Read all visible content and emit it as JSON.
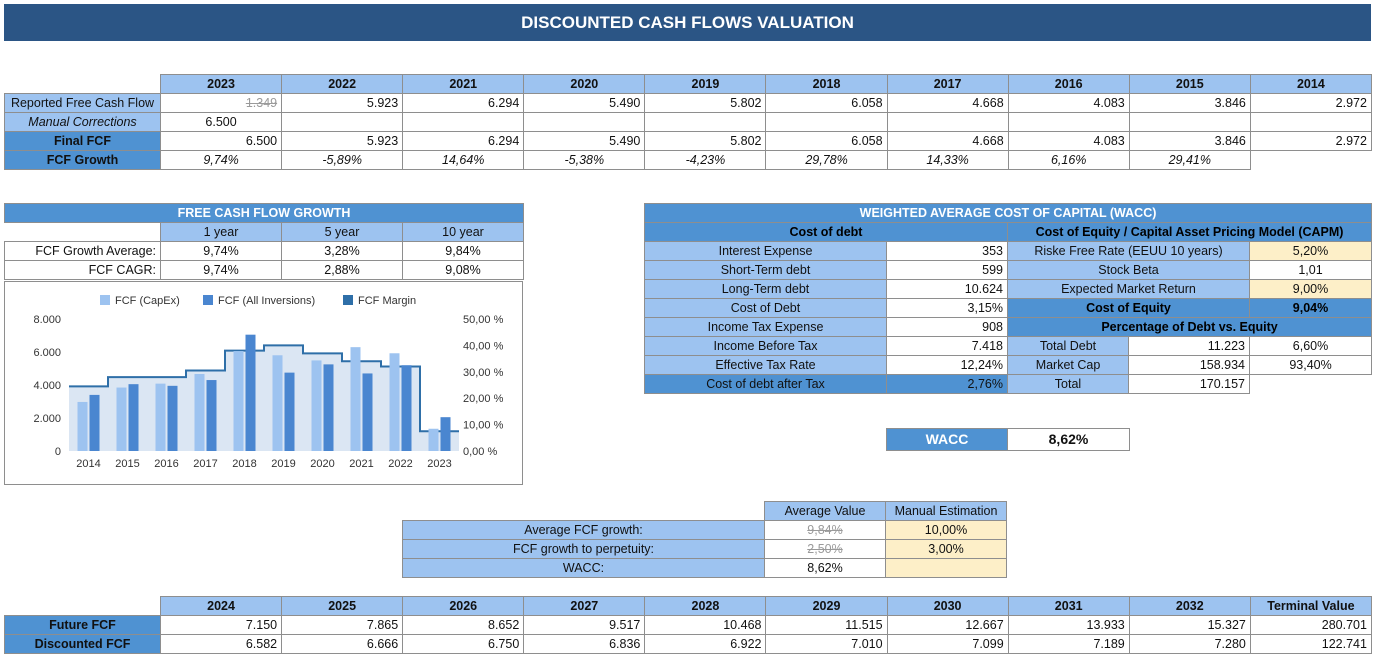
{
  "title": "DISCOUNTED CASH FLOWS VALUATION",
  "history": {
    "years": [
      "2023",
      "2022",
      "2021",
      "2020",
      "2019",
      "2018",
      "2017",
      "2016",
      "2015",
      "2014"
    ],
    "rows": [
      {
        "label": "Reported Free Cash Flow",
        "values": [
          "1.349",
          "5.923",
          "6.294",
          "5.490",
          "5.802",
          "6.058",
          "4.668",
          "4.083",
          "3.846",
          "2.972"
        ]
      },
      {
        "label": "Manual Corrections",
        "values": [
          "6.500",
          "",
          "",
          "",
          "",
          "",
          "",
          "",
          "",
          ""
        ]
      },
      {
        "label": "Final FCF",
        "values": [
          "6.500",
          "5.923",
          "6.294",
          "5.490",
          "5.802",
          "6.058",
          "4.668",
          "4.083",
          "3.846",
          "2.972"
        ]
      },
      {
        "label": "FCF Growth",
        "values": [
          "9,74%",
          "-5,89%",
          "14,64%",
          "-5,38%",
          "-4,23%",
          "29,78%",
          "14,33%",
          "6,16%",
          "29,41%",
          ""
        ]
      }
    ]
  },
  "growth": {
    "title": "FREE CASH FLOW GROWTH",
    "periods": [
      "1 year",
      "5 year",
      "10 year"
    ],
    "rows": [
      {
        "label": "FCF Growth Average:",
        "values": [
          "9,74%",
          "3,28%",
          "9,84%"
        ]
      },
      {
        "label": "FCF CAGR:",
        "values": [
          "9,74%",
          "2,88%",
          "9,08%"
        ]
      }
    ]
  },
  "chart_data": {
    "type": "bar",
    "categories": [
      "2014",
      "2015",
      "2016",
      "2017",
      "2018",
      "2019",
      "2020",
      "2021",
      "2022",
      "2023"
    ],
    "series": [
      {
        "name": "FCF (CapEx)",
        "type": "bar",
        "axis": "left",
        "color": "#9dc3f0",
        "values": [
          2972,
          3846,
          4083,
          4668,
          6058,
          5802,
          5490,
          6294,
          5923,
          1349
        ]
      },
      {
        "name": "FCF (All Inversions)",
        "type": "bar",
        "axis": "left",
        "color": "#4a86d0",
        "values": [
          3400,
          4050,
          3950,
          4300,
          7050,
          4750,
          5250,
          4700,
          5200,
          2050
        ]
      },
      {
        "name": "FCF Margin",
        "type": "area-step",
        "axis": "right",
        "color": "#2e6fa8",
        "values": [
          24.5,
          28.0,
          28.0,
          30.5,
          38.0,
          40.0,
          37.0,
          34.0,
          32.0,
          7.5
        ]
      }
    ],
    "left_ticks": [
      "0",
      "2.000",
      "4.000",
      "6.000",
      "8.000"
    ],
    "right_ticks": [
      "0,00 %",
      "10,00 %",
      "20,00 %",
      "30,00 %",
      "40,00 %",
      "50,00 %"
    ],
    "ylim_left": [
      0,
      8000
    ],
    "ylim_right": [
      0,
      50
    ],
    "legend": "top"
  },
  "wacc": {
    "title": "WEIGHTED AVERAGE COST OF CAPITAL (WACC)",
    "debt_header": "Cost of debt",
    "capm_header": "Cost of Equity / Capital Asset Pricing Model (CAPM)",
    "debt_rows": [
      {
        "label": "Interest Expense",
        "value": "353"
      },
      {
        "label": "Short-Term debt",
        "value": "599"
      },
      {
        "label": "Long-Term debt",
        "value": "10.624"
      },
      {
        "label": "Cost of Debt",
        "value": "3,15%"
      },
      {
        "label": "Income Tax Expense",
        "value": "908"
      },
      {
        "label": "Income Before Tax",
        "value": "7.418"
      },
      {
        "label": "Effective Tax Rate",
        "value": "12,24%"
      },
      {
        "label": "Cost of debt after Tax",
        "value": "2,76%"
      }
    ],
    "capm_rows": [
      {
        "label": "Riske Free Rate (EEUU 10 years)",
        "value": "5,20%"
      },
      {
        "label": "Stock Beta",
        "value": "1,01"
      },
      {
        "label": "Expected Market Return",
        "value": "9,00%"
      },
      {
        "label": "Cost of Equity",
        "value": "9,04%"
      }
    ],
    "mix_header": "Percentage of Debt vs. Equity",
    "mix_rows": [
      {
        "label": "Total Debt",
        "value": "11.223",
        "pct": "6,60%"
      },
      {
        "label": "Market Cap",
        "value": "158.934",
        "pct": "93,40%"
      },
      {
        "label": "Total",
        "value": "170.157",
        "pct": ""
      }
    ],
    "result_label": "WACC",
    "result_value": "8,62%"
  },
  "assumptions": {
    "col_avg": "Average Value",
    "col_manual": "Manual Estimation",
    "rows": [
      {
        "label": "Average FCF growth:",
        "avg": "9,84%",
        "manual": "10,00%"
      },
      {
        "label": "FCF growth to perpetuity:",
        "avg": "2,50%",
        "manual": "3,00%"
      },
      {
        "label": "WACC:",
        "avg": "8,62%",
        "manual": ""
      }
    ]
  },
  "projection": {
    "years": [
      "2024",
      "2025",
      "2026",
      "2027",
      "2028",
      "2029",
      "2030",
      "2031",
      "2032",
      "Terminal Value"
    ],
    "rows": [
      {
        "label": "Future FCF",
        "values": [
          "7.150",
          "7.865",
          "8.652",
          "9.517",
          "10.468",
          "11.515",
          "12.667",
          "13.933",
          "15.327",
          "280.701"
        ]
      },
      {
        "label": "Discounted FCF",
        "values": [
          "6.582",
          "6.666",
          "6.750",
          "6.836",
          "6.922",
          "7.010",
          "7.099",
          "7.189",
          "7.280",
          "122.741"
        ]
      }
    ]
  }
}
